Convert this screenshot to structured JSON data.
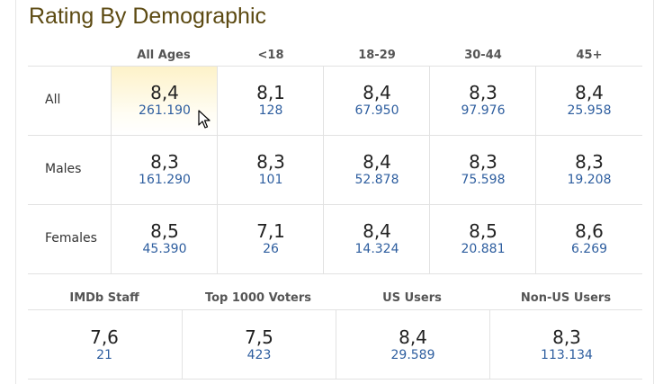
{
  "title": "Rating By Demographic",
  "columns": [
    "All Ages",
    "<18",
    "18-29",
    "30-44",
    "45+"
  ],
  "rows": [
    {
      "label": "All",
      "cells": [
        {
          "rating": "8,4",
          "votes": "261.190"
        },
        {
          "rating": "8,1",
          "votes": "128"
        },
        {
          "rating": "8,4",
          "votes": "67.950"
        },
        {
          "rating": "8,3",
          "votes": "97.976"
        },
        {
          "rating": "8,4",
          "votes": "25.958"
        }
      ]
    },
    {
      "label": "Males",
      "cells": [
        {
          "rating": "8,3",
          "votes": "161.290"
        },
        {
          "rating": "8,3",
          "votes": "101"
        },
        {
          "rating": "8,4",
          "votes": "52.878"
        },
        {
          "rating": "8,3",
          "votes": "75.598"
        },
        {
          "rating": "8,3",
          "votes": "19.208"
        }
      ]
    },
    {
      "label": "Females",
      "cells": [
        {
          "rating": "8,5",
          "votes": "45.390"
        },
        {
          "rating": "7,1",
          "votes": "26"
        },
        {
          "rating": "8,4",
          "votes": "14.324"
        },
        {
          "rating": "8,5",
          "votes": "20.881"
        },
        {
          "rating": "8,6",
          "votes": "6.269"
        }
      ]
    }
  ],
  "groups": [
    {
      "label": "IMDb Staff",
      "rating": "7,6",
      "votes": "21"
    },
    {
      "label": "Top 1000 Voters",
      "rating": "7,5",
      "votes": "423"
    },
    {
      "label": "US Users",
      "rating": "8,4",
      "votes": "29.589"
    },
    {
      "label": "Non-US Users",
      "rating": "8,3",
      "votes": "113.134"
    }
  ],
  "colors": {
    "title": "#5c4a12",
    "votes_link": "#2e5e9f",
    "highlight": "#fdf2c9"
  },
  "cursor_icon": "mouse-pointer-icon"
}
